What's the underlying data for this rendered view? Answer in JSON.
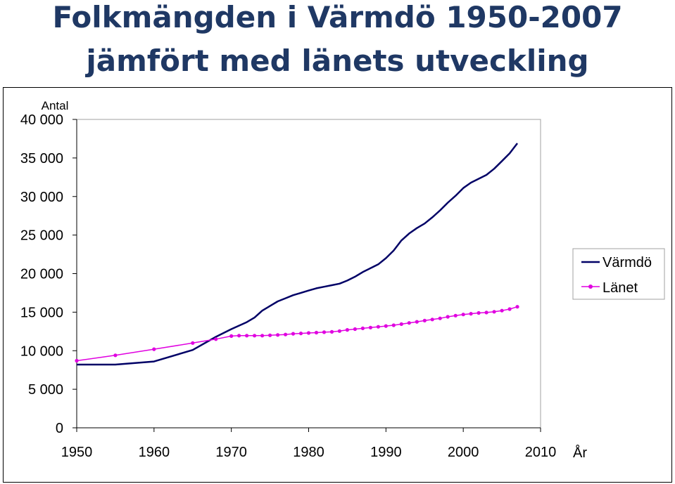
{
  "title_line1": "Folkmängden i Värmdö 1950-2007",
  "title_line2": "jämfört med länets utveckling",
  "chart_data": {
    "type": "line",
    "title": "Folkmängden i Värmdö 1950-2007 jämfört med länets utveckling",
    "ylabel": "Antal",
    "xlabel": "År",
    "xlim": [
      1950,
      2010
    ],
    "ylim": [
      0,
      40000
    ],
    "x_ticks": [
      1950,
      1960,
      1970,
      1980,
      1990,
      2000,
      2010
    ],
    "x_tick_labels": [
      "1950",
      "1960",
      "1970",
      "1980",
      "1990",
      "2000",
      "2010"
    ],
    "y_ticks": [
      0,
      5000,
      10000,
      15000,
      20000,
      25000,
      30000,
      35000,
      40000
    ],
    "y_tick_labels": [
      "0",
      "5 000",
      "10 000",
      "15 000",
      "20 000",
      "25 000",
      "30 000",
      "35 000",
      "40 000"
    ],
    "grid": false,
    "legend_position": "right",
    "series": [
      {
        "name": "Värmdö",
        "color": "#000066",
        "marker": "none",
        "points": [
          [
            1950,
            8200
          ],
          [
            1955,
            8200
          ],
          [
            1960,
            8600
          ],
          [
            1965,
            10100
          ],
          [
            1968,
            11800
          ],
          [
            1970,
            12800
          ],
          [
            1972,
            13700
          ],
          [
            1973,
            14300
          ],
          [
            1974,
            15200
          ],
          [
            1975,
            15800
          ],
          [
            1976,
            16400
          ],
          [
            1977,
            16800
          ],
          [
            1978,
            17200
          ],
          [
            1979,
            17500
          ],
          [
            1980,
            17800
          ],
          [
            1981,
            18100
          ],
          [
            1982,
            18300
          ],
          [
            1983,
            18500
          ],
          [
            1984,
            18700
          ],
          [
            1985,
            19100
          ],
          [
            1986,
            19600
          ],
          [
            1987,
            20200
          ],
          [
            1988,
            20700
          ],
          [
            1989,
            21200
          ],
          [
            1990,
            22000
          ],
          [
            1991,
            23000
          ],
          [
            1992,
            24300
          ],
          [
            1993,
            25200
          ],
          [
            1994,
            25900
          ],
          [
            1995,
            26500
          ],
          [
            1996,
            27300
          ],
          [
            1997,
            28200
          ],
          [
            1998,
            29200
          ],
          [
            1999,
            30100
          ],
          [
            2000,
            31100
          ],
          [
            2001,
            31800
          ],
          [
            2002,
            32300
          ],
          [
            2003,
            32800
          ],
          [
            2004,
            33600
          ],
          [
            2005,
            34600
          ],
          [
            2006,
            35600
          ],
          [
            2007,
            36900
          ]
        ]
      },
      {
        "name": "Länet",
        "color": "#e000e0",
        "marker": "circle",
        "points": [
          [
            1950,
            8700
          ],
          [
            1955,
            9400
          ],
          [
            1960,
            10200
          ],
          [
            1965,
            11000
          ],
          [
            1968,
            11500
          ],
          [
            1970,
            11900
          ],
          [
            1971,
            11950
          ],
          [
            1972,
            11950
          ],
          [
            1973,
            11950
          ],
          [
            1974,
            11950
          ],
          [
            1975,
            12000
          ],
          [
            1976,
            12050
          ],
          [
            1977,
            12100
          ],
          [
            1978,
            12200
          ],
          [
            1979,
            12250
          ],
          [
            1980,
            12300
          ],
          [
            1981,
            12350
          ],
          [
            1982,
            12400
          ],
          [
            1983,
            12450
          ],
          [
            1984,
            12550
          ],
          [
            1985,
            12700
          ],
          [
            1986,
            12800
          ],
          [
            1987,
            12900
          ],
          [
            1988,
            13000
          ],
          [
            1989,
            13100
          ],
          [
            1990,
            13200
          ],
          [
            1991,
            13300
          ],
          [
            1992,
            13450
          ],
          [
            1993,
            13600
          ],
          [
            1994,
            13750
          ],
          [
            1995,
            13900
          ],
          [
            1996,
            14050
          ],
          [
            1997,
            14200
          ],
          [
            1998,
            14400
          ],
          [
            1999,
            14550
          ],
          [
            2000,
            14700
          ],
          [
            2001,
            14800
          ],
          [
            2002,
            14900
          ],
          [
            2003,
            14950
          ],
          [
            2004,
            15050
          ],
          [
            2005,
            15200
          ],
          [
            2006,
            15400
          ],
          [
            2007,
            15700
          ]
        ]
      }
    ]
  }
}
